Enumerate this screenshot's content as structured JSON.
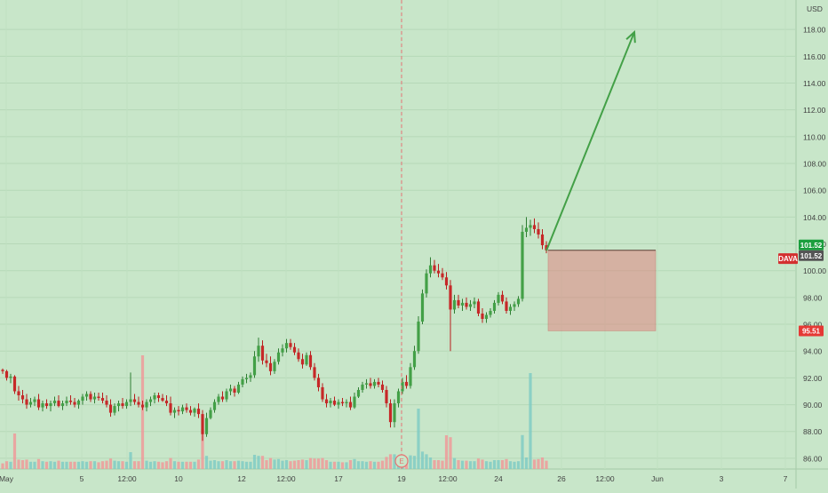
{
  "chart_data": {
    "type": "candlestick",
    "currency": "USD",
    "ticker": "DAVA",
    "ylim": [
      85,
      120
    ],
    "y_ticks": [
      "86.00",
      "88.00",
      "90.00",
      "92.00",
      "94.00",
      "96.00",
      "98.00",
      "100.00",
      "102.00",
      "104.00",
      "106.00",
      "108.00",
      "110.00",
      "112.00",
      "114.00",
      "116.00",
      "118.00"
    ],
    "x_ticks": [
      "May",
      "5",
      "12:00",
      "10",
      "12",
      "12:00",
      "17",
      "19",
      "12:00",
      "24",
      "26",
      "12:00",
      "Jun",
      "3",
      "7"
    ],
    "price_labels": [
      {
        "text": "101.52",
        "color": "#1b9e3e",
        "value": 101.52
      },
      {
        "text": "101.52",
        "color": "#555555",
        "value": 101.52
      },
      {
        "text": "DAVA",
        "color": "#d32f2f",
        "value": 100.9
      },
      {
        "text": "95.51",
        "color": "#e53935",
        "value": 95.51
      }
    ],
    "earnings_marker": "E",
    "projection": {
      "start_value": 101.5,
      "target_value": 117.8,
      "color": "#43a047"
    },
    "stop_zone": {
      "top": 101.52,
      "bottom": 95.51,
      "color": "#e57373"
    },
    "candles": [
      [
        92.6,
        92.7,
        92.3,
        92.5
      ],
      [
        92.5,
        92.6,
        91.8,
        92.0
      ],
      [
        92.0,
        92.3,
        91.6,
        92.1
      ],
      [
        92.1,
        92.2,
        90.8,
        91.0
      ],
      [
        91.0,
        91.4,
        90.3,
        90.7
      ],
      [
        90.7,
        91.1,
        90.1,
        90.4
      ],
      [
        90.4,
        90.8,
        89.7,
        90.0
      ],
      [
        90.0,
        90.5,
        89.8,
        90.2
      ],
      [
        90.2,
        90.6,
        89.9,
        90.4
      ],
      [
        90.4,
        90.8,
        89.6,
        89.8
      ],
      [
        89.8,
        90.3,
        89.5,
        90.1
      ],
      [
        90.1,
        90.4,
        89.7,
        89.9
      ],
      [
        89.9,
        90.3,
        89.5,
        90.1
      ],
      [
        90.1,
        90.6,
        89.9,
        90.3
      ],
      [
        90.3,
        90.7,
        89.8,
        89.9
      ],
      [
        89.9,
        90.3,
        89.6,
        90.1
      ],
      [
        90.1,
        90.6,
        89.9,
        90.3
      ],
      [
        90.3,
        90.7,
        90.0,
        90.2
      ],
      [
        90.2,
        90.5,
        89.8,
        90.0
      ],
      [
        90.0,
        90.4,
        89.7,
        90.3
      ],
      [
        90.3,
        90.8,
        90.0,
        90.6
      ],
      [
        90.6,
        91.0,
        90.3,
        90.8
      ],
      [
        90.8,
        91.0,
        90.2,
        90.4
      ],
      [
        90.4,
        90.9,
        90.1,
        90.6
      ],
      [
        90.6,
        90.9,
        90.3,
        90.5
      ],
      [
        90.5,
        90.9,
        90.1,
        90.3
      ],
      [
        90.3,
        90.7,
        89.8,
        90.0
      ],
      [
        90.0,
        90.4,
        89.1,
        89.4
      ],
      [
        89.4,
        90.1,
        89.2,
        89.9
      ],
      [
        89.9,
        90.3,
        89.5,
        90.1
      ],
      [
        90.1,
        90.5,
        89.7,
        89.9
      ],
      [
        89.9,
        90.4,
        89.7,
        90.2
      ],
      [
        90.2,
        92.4,
        89.9,
        90.4
      ],
      [
        90.4,
        90.8,
        90.0,
        90.2
      ],
      [
        90.2,
        90.6,
        89.8,
        90.0
      ],
      [
        90.0,
        90.3,
        89.6,
        89.8
      ],
      [
        89.8,
        90.4,
        89.5,
        90.2
      ],
      [
        90.2,
        90.6,
        89.9,
        90.4
      ],
      [
        90.4,
        90.9,
        90.1,
        90.7
      ],
      [
        90.7,
        90.9,
        90.2,
        90.5
      ],
      [
        90.5,
        90.8,
        90.2,
        90.3
      ],
      [
        90.3,
        90.7,
        89.9,
        90.1
      ],
      [
        90.1,
        90.6,
        89.2,
        89.4
      ],
      [
        89.4,
        89.8,
        89.0,
        89.6
      ],
      [
        89.6,
        89.9,
        89.2,
        89.5
      ],
      [
        89.5,
        90.0,
        89.3,
        89.8
      ],
      [
        89.8,
        90.1,
        89.4,
        89.6
      ],
      [
        89.6,
        89.9,
        89.2,
        89.4
      ],
      [
        89.4,
        89.8,
        89.1,
        89.7
      ],
      [
        89.7,
        90.1,
        89.0,
        89.3
      ],
      [
        89.3,
        89.6,
        87.3,
        87.8
      ],
      [
        87.8,
        89.4,
        87.6,
        89.0
      ],
      [
        89.0,
        89.8,
        88.9,
        89.6
      ],
      [
        89.6,
        90.4,
        89.4,
        90.2
      ],
      [
        90.2,
        90.8,
        90.0,
        90.6
      ],
      [
        90.6,
        91.0,
        90.2,
        90.4
      ],
      [
        90.4,
        91.2,
        90.2,
        91.0
      ],
      [
        91.0,
        91.5,
        90.7,
        91.2
      ],
      [
        91.2,
        91.4,
        90.6,
        90.9
      ],
      [
        90.9,
        91.7,
        90.8,
        91.5
      ],
      [
        91.5,
        92.1,
        91.3,
        91.9
      ],
      [
        91.9,
        92.3,
        91.6,
        92.0
      ],
      [
        92.0,
        92.4,
        91.7,
        92.2
      ],
      [
        92.2,
        94.0,
        92.0,
        93.6
      ],
      [
        93.6,
        95.0,
        93.2,
        94.4
      ],
      [
        94.4,
        94.8,
        93.0,
        93.3
      ],
      [
        93.3,
        93.8,
        92.8,
        93.1
      ],
      [
        93.1,
        93.6,
        92.2,
        92.5
      ],
      [
        92.5,
        93.4,
        92.3,
        93.2
      ],
      [
        93.2,
        94.2,
        93.0,
        93.9
      ],
      [
        93.9,
        94.5,
        93.6,
        94.2
      ],
      [
        94.2,
        94.9,
        93.9,
        94.6
      ],
      [
        94.6,
        94.9,
        94.1,
        94.3
      ],
      [
        94.3,
        94.6,
        93.7,
        93.9
      ],
      [
        93.9,
        94.2,
        93.2,
        93.4
      ],
      [
        93.4,
        93.8,
        92.7,
        93.0
      ],
      [
        93.0,
        93.9,
        92.9,
        93.7
      ],
      [
        93.7,
        94.0,
        92.6,
        92.8
      ],
      [
        92.8,
        93.1,
        91.8,
        92.0
      ],
      [
        92.0,
        92.3,
        91.0,
        91.3
      ],
      [
        91.3,
        91.6,
        90.2,
        90.4
      ],
      [
        90.4,
        90.8,
        89.8,
        90.1
      ],
      [
        90.1,
        90.5,
        89.8,
        90.3
      ],
      [
        90.3,
        90.6,
        89.9,
        90.0
      ],
      [
        90.0,
        90.4,
        89.7,
        90.2
      ],
      [
        90.2,
        90.5,
        89.9,
        90.1
      ],
      [
        90.1,
        90.4,
        89.8,
        90.2
      ],
      [
        90.2,
        90.6,
        89.6,
        89.8
      ],
      [
        89.8,
        90.9,
        89.7,
        90.6
      ],
      [
        90.6,
        91.3,
        90.5,
        91.1
      ],
      [
        91.1,
        91.7,
        90.9,
        91.5
      ],
      [
        91.5,
        91.9,
        91.2,
        91.6
      ],
      [
        91.6,
        92.0,
        91.2,
        91.4
      ],
      [
        91.4,
        91.9,
        91.2,
        91.7
      ],
      [
        91.7,
        92.0,
        91.3,
        91.5
      ],
      [
        91.5,
        91.8,
        90.9,
        91.1
      ],
      [
        91.1,
        91.4,
        89.8,
        90.1
      ],
      [
        90.1,
        90.4,
        88.3,
        88.7
      ],
      [
        88.7,
        90.4,
        88.3,
        90.1
      ],
      [
        90.1,
        91.2,
        89.8,
        91.0
      ],
      [
        91.0,
        92.0,
        90.8,
        91.7
      ],
      [
        91.7,
        92.2,
        91.2,
        91.4
      ],
      [
        91.4,
        93.1,
        91.2,
        92.8
      ],
      [
        92.8,
        94.4,
        92.6,
        94.0
      ],
      [
        94.0,
        96.6,
        93.8,
        96.2
      ],
      [
        96.2,
        98.6,
        96.0,
        98.3
      ],
      [
        98.3,
        100.1,
        98.0,
        99.8
      ],
      [
        99.8,
        101.0,
        99.5,
        100.4
      ],
      [
        100.4,
        100.8,
        99.8,
        100.0
      ],
      [
        100.0,
        100.5,
        99.5,
        99.8
      ],
      [
        99.8,
        100.2,
        99.3,
        99.5
      ],
      [
        99.5,
        99.9,
        98.6,
        98.9
      ],
      [
        98.9,
        99.3,
        94.0,
        97.1
      ],
      [
        97.1,
        98.2,
        96.8,
        97.8
      ],
      [
        97.8,
        98.2,
        97.2,
        97.4
      ],
      [
        97.4,
        97.9,
        97.0,
        97.6
      ],
      [
        97.6,
        98.0,
        97.1,
        97.3
      ],
      [
        97.3,
        97.8,
        97.0,
        97.5
      ],
      [
        97.5,
        98.0,
        97.2,
        97.7
      ],
      [
        97.7,
        97.9,
        96.6,
        96.8
      ],
      [
        96.8,
        97.2,
        96.1,
        96.4
      ],
      [
        96.4,
        96.9,
        96.1,
        96.7
      ],
      [
        96.7,
        97.2,
        96.5,
        97.0
      ],
      [
        97.0,
        97.8,
        96.8,
        97.6
      ],
      [
        97.6,
        98.4,
        97.4,
        98.2
      ],
      [
        98.2,
        98.5,
        97.5,
        97.7
      ],
      [
        97.7,
        98.0,
        96.8,
        97.0
      ],
      [
        97.0,
        97.5,
        96.7,
        97.3
      ],
      [
        97.3,
        97.7,
        97.0,
        97.5
      ],
      [
        97.5,
        98.1,
        97.3,
        97.9
      ],
      [
        97.9,
        103.4,
        97.7,
        102.9
      ],
      [
        102.9,
        104.0,
        102.5,
        103.2
      ],
      [
        103.2,
        103.8,
        102.6,
        103.4
      ],
      [
        103.4,
        103.9,
        102.8,
        103.1
      ],
      [
        103.1,
        103.6,
        102.4,
        102.7
      ],
      [
        102.7,
        103.1,
        101.6,
        101.9
      ],
      [
        101.9,
        102.2,
        101.3,
        101.52
      ]
    ]
  }
}
